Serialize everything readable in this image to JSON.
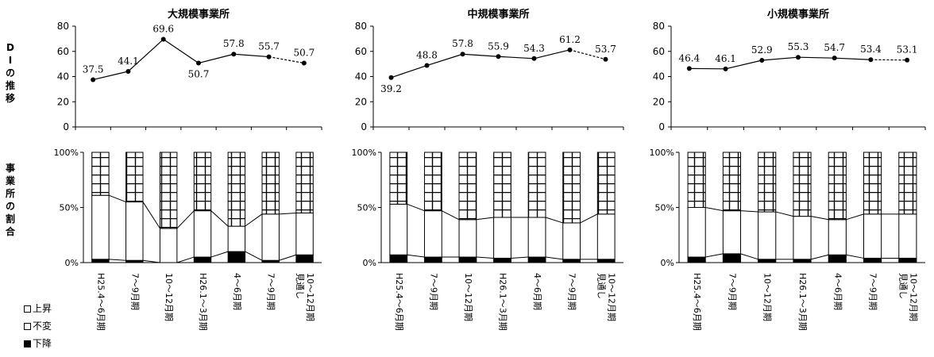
{
  "side_labels": {
    "di": "D\nI\nの\n推\n移",
    "share": "事\n業\n所\nの\n割\n合"
  },
  "legend": [
    {
      "label": "上昇",
      "style": "grid",
      "icon": "hollow-square-icon"
    },
    {
      "label": "不変",
      "style": "white",
      "icon": "hollow-square-icon"
    },
    {
      "label": "下降",
      "style": "dark",
      "icon": "filled-square-icon"
    }
  ],
  "chart_data": [
    {
      "type": "line",
      "title": "大規模事業所",
      "categories": [
        "H25.4～6月期",
        "7～9月期",
        "10～12月期",
        "H26.1～3月期",
        "4～6月期",
        "7～9月期",
        "10～12月期\n見通し"
      ],
      "values": [
        37.5,
        44.1,
        69.6,
        50.7,
        57.8,
        55.7,
        50.7
      ],
      "labels": [
        "37.5",
        "44.1",
        "69.6",
        "50.7",
        "57.8",
        "55.7",
        "50.7"
      ],
      "label_pos": [
        "above",
        "above",
        "above",
        "below",
        "above",
        "above",
        "above"
      ],
      "ylim": [
        0,
        80
      ],
      "yticks": [
        "0",
        "20",
        "40",
        "60",
        "80"
      ],
      "last_segment_dashed": true
    },
    {
      "type": "line",
      "title": "中規模事業所",
      "categories": [
        "H25.4～6月期",
        "7～9月期",
        "10～12月期",
        "H26.1～3月期",
        "4～6月期",
        "7～9月期",
        "10～12月期\n見通し"
      ],
      "values": [
        39.2,
        48.8,
        57.8,
        55.9,
        54.3,
        61.2,
        53.7
      ],
      "labels": [
        "39.2",
        "48.8",
        "57.8",
        "55.9",
        "54.3",
        "61.2",
        "53.7"
      ],
      "label_pos": [
        "below",
        "above",
        "above",
        "above",
        "above",
        "above",
        "above"
      ],
      "ylim": [
        0,
        80
      ],
      "yticks": [
        "0",
        "20",
        "40",
        "60",
        "80"
      ],
      "last_segment_dashed": true
    },
    {
      "type": "line",
      "title": "小規模事業所",
      "categories": [
        "H25.4～6月期",
        "7～9月期",
        "10～12月期",
        "H26.1～3月期",
        "4～6月期",
        "7～9月期",
        "10～12月期\n見通し"
      ],
      "values": [
        46.4,
        46.1,
        52.9,
        55.3,
        54.7,
        53.4,
        53.1
      ],
      "labels": [
        "46.4",
        "46.1",
        "52.9",
        "55.3",
        "54.7",
        "53.4",
        "53.1"
      ],
      "label_pos": [
        "above",
        "above",
        "above",
        "above",
        "above",
        "above",
        "above"
      ],
      "ylim": [
        0,
        80
      ],
      "yticks": [
        "0",
        "20",
        "40",
        "60",
        "80"
      ],
      "last_segment_dashed": true
    },
    {
      "type": "bar",
      "stacked": true,
      "percent": true,
      "categories": [
        "H25.4～6月期",
        "7～9月期",
        "10～12月期",
        "H26.1～3月期",
        "4～6月期",
        "7～9月期",
        "10～12月期\n見通し"
      ],
      "yticks": [
        "0%",
        "50%",
        "100%"
      ],
      "series": [
        {
          "name": "下降",
          "values": [
            3,
            2,
            0,
            5,
            10,
            2,
            7
          ]
        },
        {
          "name": "不変",
          "values": [
            58,
            53,
            31,
            42,
            23,
            42,
            38
          ]
        },
        {
          "name": "上昇",
          "values": [
            39,
            45,
            69,
            53,
            67,
            56,
            55
          ]
        }
      ]
    },
    {
      "type": "bar",
      "stacked": true,
      "percent": true,
      "categories": [
        "H25.4～6月期",
        "7～9月期",
        "10～12月期",
        "H26.1～3月期",
        "4～6月期",
        "7～9月期",
        "10～12月期\n見通し"
      ],
      "yticks": [
        "0%",
        "50%",
        "100%"
      ],
      "series": [
        {
          "name": "下降",
          "values": [
            7,
            5,
            5,
            4,
            5,
            3,
            3
          ]
        },
        {
          "name": "不変",
          "values": [
            46,
            42,
            34,
            37,
            36,
            33,
            41
          ]
        },
        {
          "name": "上昇",
          "values": [
            47,
            53,
            61,
            59,
            59,
            64,
            56
          ]
        }
      ]
    },
    {
      "type": "bar",
      "stacked": true,
      "percent": true,
      "categories": [
        "H25.4～6月期",
        "7～9月期",
        "10～12月期",
        "H26.1～3月期",
        "4～6月期",
        "7～9月期",
        "10～12月期\n見通し"
      ],
      "yticks": [
        "0%",
        "50%",
        "100%"
      ],
      "series": [
        {
          "name": "下降",
          "values": [
            5,
            8,
            3,
            3,
            7,
            4,
            4
          ]
        },
        {
          "name": "不変",
          "values": [
            45,
            39,
            43,
            39,
            32,
            40,
            40
          ]
        },
        {
          "name": "上昇",
          "values": [
            50,
            53,
            54,
            58,
            61,
            56,
            56
          ]
        }
      ]
    }
  ]
}
